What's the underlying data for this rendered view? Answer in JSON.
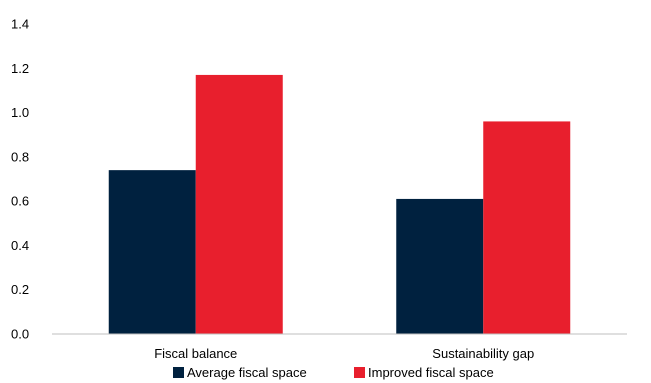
{
  "chart_data": {
    "type": "bar",
    "categories": [
      "Fiscal balance",
      "Sustainability gap"
    ],
    "series": [
      {
        "name": "Average fiscal space",
        "values": [
          0.74,
          0.61
        ],
        "color": "#00213f"
      },
      {
        "name": "Improved fiscal space",
        "values": [
          1.17,
          0.96
        ],
        "color": "#e81f2d"
      }
    ],
    "ylim": [
      0,
      1.4
    ],
    "yticks": [
      "0.0",
      "0.2",
      "0.4",
      "0.6",
      "0.8",
      "1.0",
      "1.2",
      "1.4"
    ],
    "grid": false,
    "legend_position": "bottom"
  }
}
